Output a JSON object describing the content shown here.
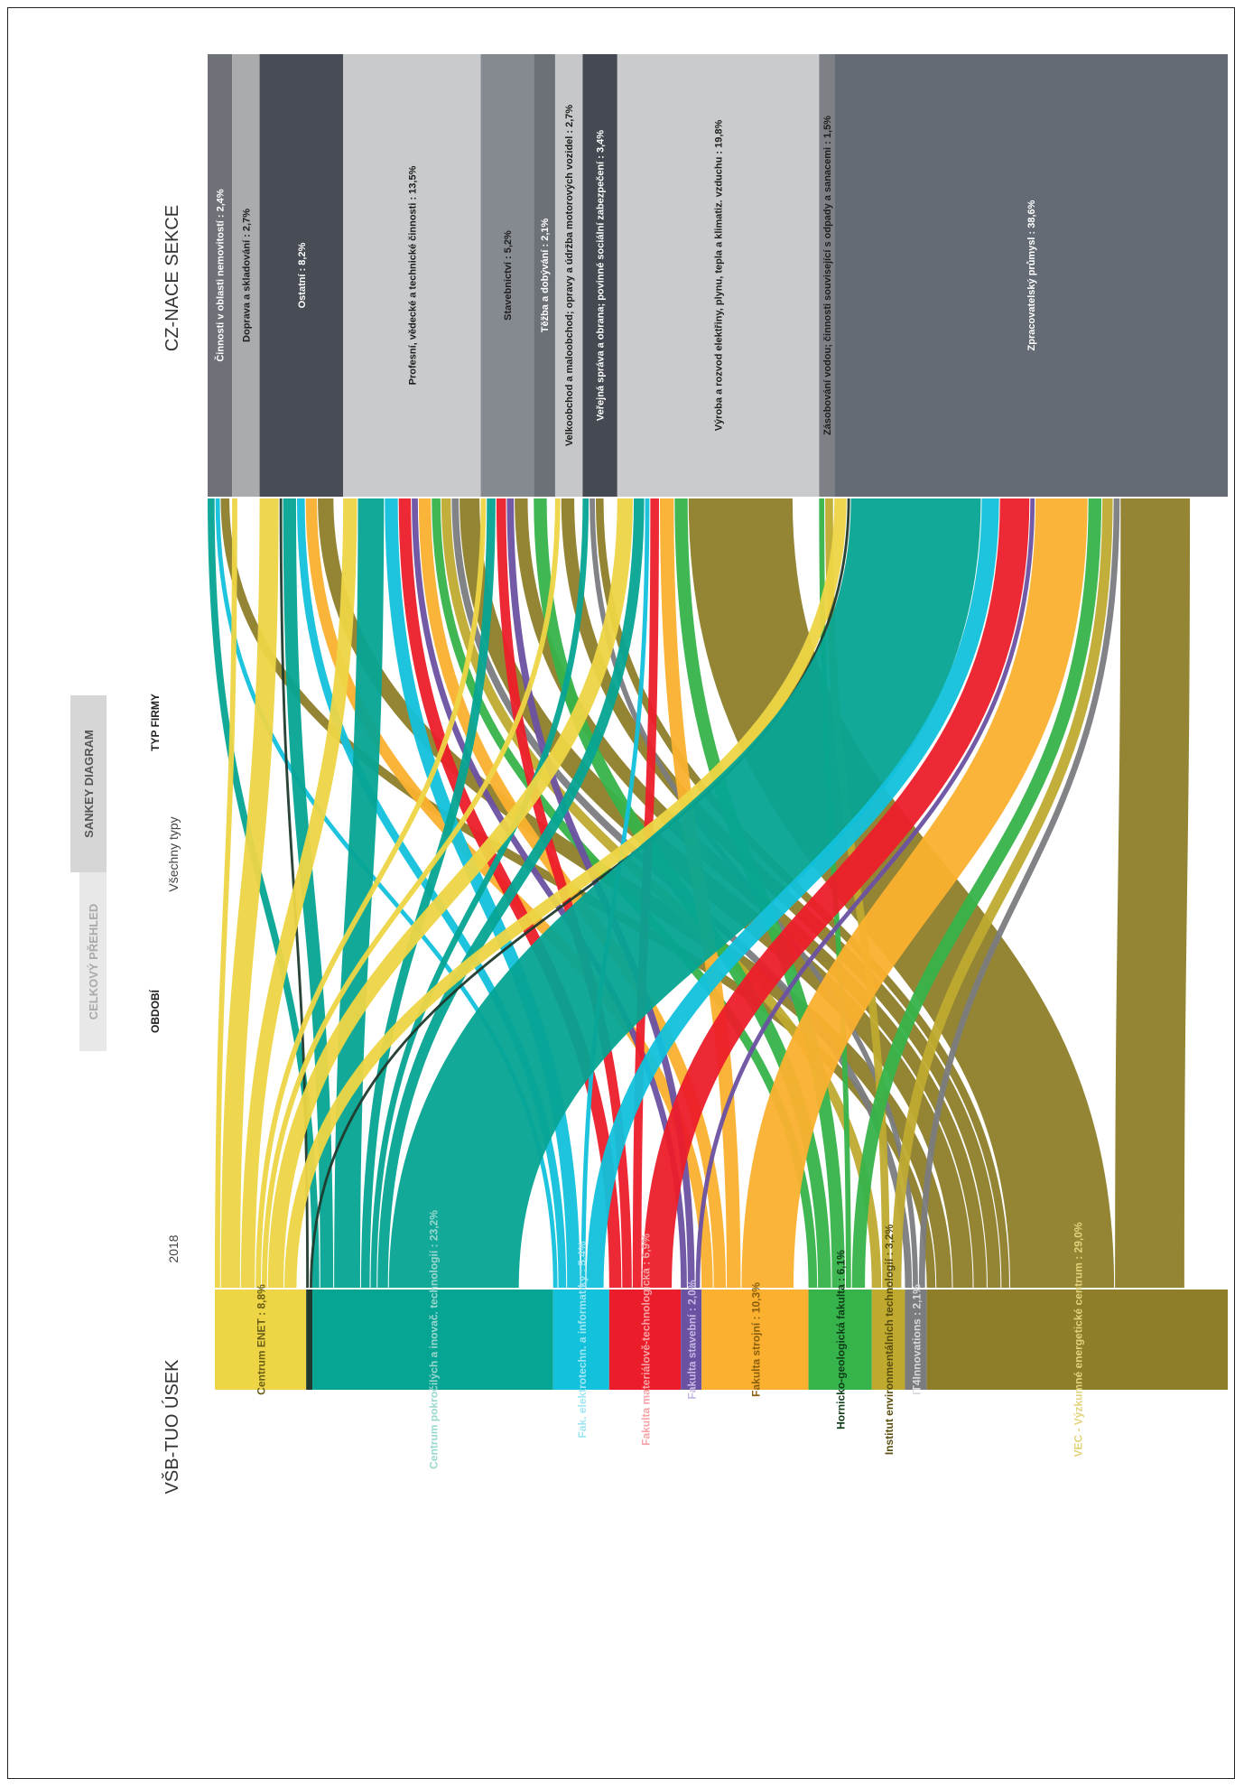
{
  "header": {
    "left_title": "VŠB-TUO ÚSEK",
    "right_title": "CZ-NACE SEKCE",
    "period_label": "OBDOBÍ",
    "period_value": "2018",
    "type_label": "TYP FIRMY",
    "type_value": "Všechny typy"
  },
  "tabs": [
    {
      "label": "CELKOVÝ PŘEHLED",
      "active": false
    },
    {
      "label": "SANKEY DIAGRAM",
      "active": true
    }
  ],
  "chart_data": {
    "type": "sankey",
    "sources": [
      {
        "label": "Centrum ENET : 8,8%",
        "value": 8.8,
        "color": "#EDD545",
        "text_color": "#6b5f14"
      },
      {
        "label": "",
        "value": 0.6,
        "color": "#1f3a2c",
        "text_color": "#ffffff"
      },
      {
        "label": "Centrum pokročilých a inovač. technologií : 23,2%",
        "value": 23.2,
        "color": "#06A493",
        "text_color": "#9ad8cf"
      },
      {
        "label": "Fak. elektrotechn. a informatiky : 5,4%",
        "value": 5.4,
        "color": "#12C1DC",
        "text_color": "#9ee6f1"
      },
      {
        "label": "Fakulta materiálově-technologická : 6,9%",
        "value": 6.9,
        "color": "#EC1D2A",
        "text_color": "#f6a2a6"
      },
      {
        "label": "Fakulta stavební : 2,0%",
        "value": 2.0,
        "color": "#6A51A2",
        "text_color": "#c4b8e2"
      },
      {
        "label": "Fakulta strojní : 10,3%",
        "value": 10.3,
        "color": "#FBB02F",
        "text_color": "#8a5f0c"
      },
      {
        "label": "Hornicko-geologická fakulta : 6,1%",
        "value": 6.1,
        "color": "#36B34A",
        "text_color": "#0f3d18"
      },
      {
        "label": "Institut environmentálních technologií : 3,2%",
        "value": 3.2,
        "color": "#BFAA2F",
        "text_color": "#5a4e0f"
      },
      {
        "label": "IT4Innovations : 2,1%",
        "value": 2.1,
        "color": "#7A7C80",
        "text_color": "#d8d9db"
      },
      {
        "label": "VEC - Výzkumné energetické centrum : 29,0%",
        "value": 29.0,
        "color": "#8E7E2A",
        "text_color": "#e2d27a"
      }
    ],
    "targets": [
      {
        "label": "Činnosti v oblasti nemovitostí : 2,4%",
        "value": 2.4,
        "color": "#6E7278",
        "text_color": "#ffffff"
      },
      {
        "label": "Doprava a skladování : 2,7%",
        "value": 2.7,
        "color": "#A9ABAD",
        "text_color": "#1e1e1e"
      },
      {
        "label": "Ostatní : 8,2%",
        "value": 8.2,
        "color": "#484C54",
        "text_color": "#ffffff"
      },
      {
        "label": "Profesní, vědecké a technické činnosti : 13,5%",
        "value": 13.5,
        "color": "#C8CACB",
        "text_color": "#1e1e1e"
      },
      {
        "label": "Stavebnictví : 5,2%",
        "value": 5.2,
        "color": "#858A90",
        "text_color": "#1e1e1e"
      },
      {
        "label": "Těžba a dobývání : 2,1%",
        "value": 2.1,
        "color": "#6C7077",
        "text_color": "#ffffff"
      },
      {
        "label": "Velkoobchod a maloobchod; opravy a údržba motorových vozidel : 2,7%",
        "value": 2.7,
        "color": "#C5C7C8",
        "text_color": "#1e1e1e"
      },
      {
        "label": "Veřejná správa a obrana; povinné sociální zabezpečení : 3,4%",
        "value": 3.4,
        "color": "#454A52",
        "text_color": "#ffffff"
      },
      {
        "label": "Výroba a rozvod elektřiny, plynu, tepla a klimatiz. vzduchu : 19,8%",
        "value": 19.8,
        "color": "#C9CBCC",
        "text_color": "#1e1e1e"
      },
      {
        "label": "Zásobování vodou; činnosti související s odpady a sanacemi : 1,5%",
        "value": 1.5,
        "color": "#7D8186",
        "text_color": "#1e1e1e"
      },
      {
        "label": "Zpracovatelský průmysl : 38,6%",
        "value": 38.6,
        "color": "#646B75",
        "text_color": "#ffffff"
      }
    ],
    "flows": [
      {
        "source": 0,
        "target": 2,
        "value": 2.2
      },
      {
        "source": 0,
        "target": 3,
        "value": 1.6
      },
      {
        "source": 0,
        "target": 8,
        "value": 1.8
      },
      {
        "source": 0,
        "target": 10,
        "value": 1.4
      },
      {
        "source": 0,
        "target": 6,
        "value": 0.6
      },
      {
        "source": 0,
        "target": 4,
        "value": 0.6
      },
      {
        "source": 0,
        "target": 1,
        "value": 0.6
      },
      {
        "source": 1,
        "target": 2,
        "value": 0.3
      },
      {
        "source": 1,
        "target": 10,
        "value": 0.3
      },
      {
        "source": 2,
        "target": 10,
        "value": 15.0
      },
      {
        "source": 2,
        "target": 3,
        "value": 3.0
      },
      {
        "source": 2,
        "target": 2,
        "value": 1.5
      },
      {
        "source": 2,
        "target": 8,
        "value": 1.2
      },
      {
        "source": 2,
        "target": 4,
        "value": 1.0
      },
      {
        "source": 2,
        "target": 0,
        "value": 0.8
      },
      {
        "source": 2,
        "target": 7,
        "value": 0.7
      },
      {
        "source": 3,
        "target": 10,
        "value": 2.0
      },
      {
        "source": 3,
        "target": 3,
        "value": 1.5
      },
      {
        "source": 3,
        "target": 2,
        "value": 0.9
      },
      {
        "source": 3,
        "target": 0,
        "value": 0.5
      },
      {
        "source": 3,
        "target": 8,
        "value": 0.5
      },
      {
        "source": 4,
        "target": 10,
        "value": 3.4
      },
      {
        "source": 4,
        "target": 3,
        "value": 1.4
      },
      {
        "source": 4,
        "target": 8,
        "value": 1.0
      },
      {
        "source": 4,
        "target": 4,
        "value": 1.1
      },
      {
        "source": 5,
        "target": 4,
        "value": 0.8
      },
      {
        "source": 5,
        "target": 3,
        "value": 0.7
      },
      {
        "source": 5,
        "target": 10,
        "value": 0.5
      },
      {
        "source": 6,
        "target": 10,
        "value": 6.0
      },
      {
        "source": 6,
        "target": 8,
        "value": 1.6
      },
      {
        "source": 6,
        "target": 3,
        "value": 1.4
      },
      {
        "source": 6,
        "target": 2,
        "value": 1.3
      },
      {
        "source": 7,
        "target": 5,
        "value": 1.5
      },
      {
        "source": 7,
        "target": 8,
        "value": 1.5
      },
      {
        "source": 7,
        "target": 10,
        "value": 1.5
      },
      {
        "source": 7,
        "target": 3,
        "value": 1.0
      },
      {
        "source": 7,
        "target": 9,
        "value": 0.6
      },
      {
        "source": 8,
        "target": 10,
        "value": 1.2
      },
      {
        "source": 8,
        "target": 9,
        "value": 0.9
      },
      {
        "source": 8,
        "target": 3,
        "value": 1.1
      },
      {
        "source": 9,
        "target": 3,
        "value": 0.8
      },
      {
        "source": 9,
        "target": 10,
        "value": 0.7
      },
      {
        "source": 9,
        "target": 7,
        "value": 0.6
      },
      {
        "source": 10,
        "target": 8,
        "value": 12.0
      },
      {
        "source": 10,
        "target": 10,
        "value": 8.0
      },
      {
        "source": 10,
        "target": 3,
        "value": 2.3
      },
      {
        "source": 10,
        "target": 2,
        "value": 1.8
      },
      {
        "source": 10,
        "target": 6,
        "value": 1.5
      },
      {
        "source": 10,
        "target": 4,
        "value": 1.5
      },
      {
        "source": 10,
        "target": 0,
        "value": 1.0
      },
      {
        "source": 10,
        "target": 7,
        "value": 0.9
      }
    ]
  }
}
